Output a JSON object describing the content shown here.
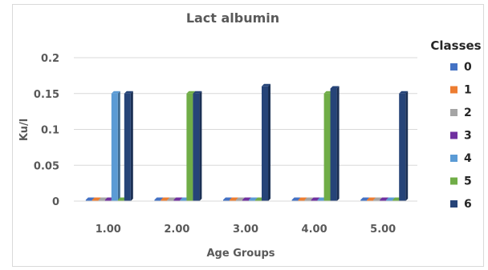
{
  "chart_data": {
    "type": "bar",
    "title": "Lact albumin",
    "xlabel": "Age Groups",
    "ylabel": "Ku/l",
    "ylim": [
      0,
      0.2
    ],
    "yticks": [
      "0",
      "0.05",
      "0.1",
      "0.15",
      "0.2"
    ],
    "ytick_values": [
      0,
      0.05,
      0.1,
      0.15,
      0.2
    ],
    "categories": [
      "1.00",
      "2.00",
      "3.00",
      "4.00",
      "5.00"
    ],
    "legend_title": "Classes",
    "legend_position": "right",
    "grid": "horizontal",
    "series": [
      {
        "name": "0",
        "color": "#4472C4",
        "values": [
          0,
          0,
          0,
          0,
          0
        ]
      },
      {
        "name": "1",
        "color": "#ED7D31",
        "values": [
          0,
          0,
          0,
          0,
          0
        ]
      },
      {
        "name": "2",
        "color": "#A5A5A5",
        "values": [
          0,
          0,
          0,
          0,
          0
        ]
      },
      {
        "name": "3",
        "color": "#7030A0",
        "values": [
          0,
          0,
          0,
          0,
          0
        ]
      },
      {
        "name": "4",
        "color": "#5B9BD5",
        "values": [
          0.15,
          0,
          0,
          0,
          0
        ]
      },
      {
        "name": "5",
        "color": "#70AD47",
        "values": [
          0,
          0.15,
          0,
          0.15,
          0
        ]
      },
      {
        "name": "6",
        "color": "#264478",
        "values": [
          0.15,
          0.15,
          0.16,
          0.157,
          0.15
        ]
      }
    ]
  }
}
